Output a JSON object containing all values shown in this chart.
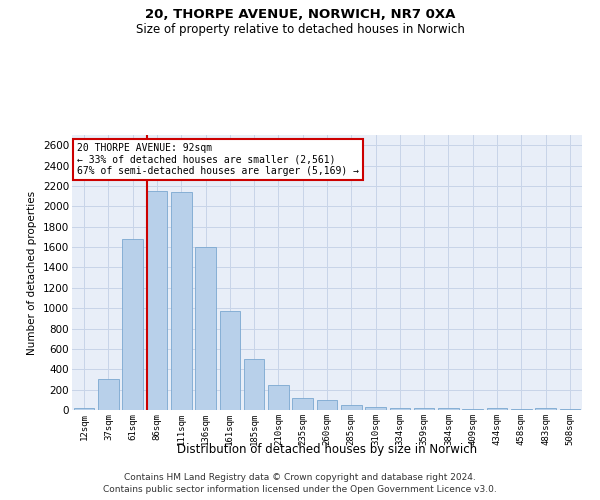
{
  "title1": "20, THORPE AVENUE, NORWICH, NR7 0XA",
  "title2": "Size of property relative to detached houses in Norwich",
  "xlabel": "Distribution of detached houses by size in Norwich",
  "ylabel": "Number of detached properties",
  "categories": [
    "12sqm",
    "37sqm",
    "61sqm",
    "86sqm",
    "111sqm",
    "136sqm",
    "161sqm",
    "185sqm",
    "210sqm",
    "235sqm",
    "260sqm",
    "285sqm",
    "310sqm",
    "334sqm",
    "359sqm",
    "384sqm",
    "409sqm",
    "434sqm",
    "458sqm",
    "483sqm",
    "508sqm"
  ],
  "values": [
    20,
    300,
    1680,
    2150,
    2140,
    1600,
    970,
    500,
    250,
    120,
    95,
    50,
    30,
    20,
    15,
    18,
    10,
    18,
    5,
    22,
    5
  ],
  "bar_color": "#b8d0ea",
  "bar_edgecolor": "#7ba8d0",
  "vline_color": "#cc0000",
  "annotation_text": "20 THORPE AVENUE: 92sqm\n← 33% of detached houses are smaller (2,561)\n67% of semi-detached houses are larger (5,169) →",
  "annotation_box_edgecolor": "#cc0000",
  "ylim": [
    0,
    2700
  ],
  "yticks": [
    0,
    200,
    400,
    600,
    800,
    1000,
    1200,
    1400,
    1600,
    1800,
    2000,
    2200,
    2400,
    2600
  ],
  "footer1": "Contains HM Land Registry data © Crown copyright and database right 2024.",
  "footer2": "Contains public sector information licensed under the Open Government Licence v3.0.",
  "background_color": "#ffffff",
  "grid_color": "#c8d4e8",
  "axes_bg_color": "#e8eef8"
}
